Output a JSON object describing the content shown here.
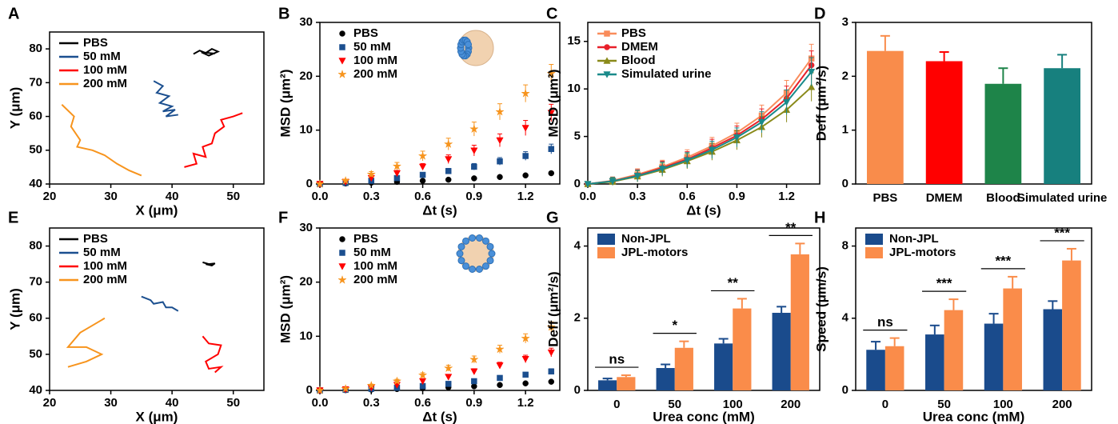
{
  "chart_data": [
    {
      "type": "line",
      "label": "A",
      "xlabel": "X (μm)",
      "ylabel": "Y (μm)",
      "xlim": [
        20,
        55
      ],
      "xticks": [
        20,
        30,
        40,
        50
      ],
      "ylim": [
        40,
        85
      ],
      "yticks": [
        40,
        50,
        60,
        70,
        80
      ],
      "legend": "upper left",
      "series": [
        {
          "name": "PBS",
          "color": "#000000",
          "x": [
            43.5,
            44.5,
            45.5,
            46.5,
            47.5,
            46,
            44.8,
            47
          ],
          "values": [
            78.5,
            79.5,
            78.8,
            80,
            79.2,
            78,
            79,
            78.6
          ]
        },
        {
          "name": "50 mM",
          "color": "#1b4f8f",
          "x": [
            37,
            38.5,
            37.5,
            39.5,
            38,
            40,
            38.5,
            40.5,
            39,
            41
          ],
          "values": [
            70.5,
            69,
            67,
            66,
            64,
            63,
            61.5,
            62,
            60,
            60.5
          ]
        },
        {
          "name": "100 mM",
          "color": "#ff0000",
          "x": [
            42,
            44,
            43.5,
            45.5,
            45,
            46.5,
            47,
            48.5,
            48,
            50,
            51.5
          ],
          "values": [
            45,
            46,
            49,
            48,
            51,
            52,
            55,
            57,
            59,
            60,
            61
          ]
        },
        {
          "name": "200 mM",
          "color": "#f7941d",
          "x": [
            22,
            24,
            23.5,
            25,
            24.5,
            27,
            29,
            31,
            33,
            35
          ],
          "values": [
            63.5,
            60,
            57,
            53,
            51,
            50,
            48.5,
            46,
            44,
            42.5
          ]
        }
      ]
    },
    {
      "type": "scatter",
      "label": "B",
      "xlabel": "Δt (s)",
      "ylabel": "MSD (μm²)",
      "xlim": [
        0,
        1.4
      ],
      "xticks": [
        {
          "value": 0,
          "label": "0.0"
        },
        0.3,
        0.6,
        0.9,
        1.2
      ],
      "ylim": [
        0,
        30
      ],
      "yticks": [
        0,
        10,
        20,
        30
      ],
      "legend": "upper left",
      "x": [
        0,
        0.15,
        0.3,
        0.45,
        0.6,
        0.75,
        0.9,
        1.05,
        1.2,
        1.35
      ],
      "series": [
        {
          "name": "PBS",
          "color": "#000000",
          "marker": "circle",
          "values": [
            0,
            0.1,
            0.25,
            0.4,
            0.6,
            0.8,
            1.05,
            1.3,
            1.6,
            2.0
          ],
          "errors": [
            0,
            0.05,
            0.1,
            0.1,
            0.15,
            0.15,
            0.2,
            0.2,
            0.25,
            0.3
          ]
        },
        {
          "name": "50 mM",
          "color": "#1b4f8f",
          "marker": "square",
          "values": [
            0,
            0.2,
            0.6,
            1.1,
            1.7,
            2.4,
            3.2,
            4.2,
            5.2,
            6.5
          ],
          "errors": [
            0,
            0.1,
            0.2,
            0.3,
            0.4,
            0.5,
            0.6,
            0.7,
            0.8,
            0.9
          ]
        },
        {
          "name": "100 mM",
          "color": "#ff0000",
          "marker": "triangle-down",
          "values": [
            0,
            0.4,
            1.1,
            2.0,
            3.2,
            4.6,
            6.2,
            8.1,
            10.4,
            13.2
          ],
          "errors": [
            0,
            0.2,
            0.3,
            0.5,
            0.6,
            0.8,
            1,
            1.2,
            1.4,
            1.6
          ]
        },
        {
          "name": "200 mM",
          "color": "#f7941d",
          "marker": "star",
          "values": [
            0,
            0.6,
            1.8,
            3.3,
            5.2,
            7.4,
            10.2,
            13.4,
            16.8,
            20.5
          ],
          "errors": [
            0,
            0.3,
            0.5,
            0.7,
            0.9,
            1.1,
            1.3,
            1.5,
            1.6,
            1.7
          ]
        }
      ]
    },
    {
      "type": "line",
      "label": "C",
      "xlabel": "Δt (s)",
      "ylabel": "MSD (μm²)",
      "xlim": [
        0,
        1.4
      ],
      "xticks": [
        {
          "value": 0,
          "label": "0.0"
        },
        0.3,
        0.6,
        0.9,
        1.2
      ],
      "ylim": [
        0,
        17
      ],
      "yticks": [
        0,
        5,
        10,
        15
      ],
      "legend": "upper left",
      "x": [
        0,
        0.15,
        0.3,
        0.45,
        0.6,
        0.75,
        0.9,
        1.05,
        1.2,
        1.35
      ],
      "series": [
        {
          "name": "PBS",
          "color": "#f98c5b",
          "marker": "square",
          "values": [
            0,
            0.35,
            1.0,
            1.8,
            2.8,
            4.0,
            5.4,
            7.2,
            9.6,
            13.2
          ],
          "errors": [
            0,
            0.4,
            0.6,
            0.7,
            0.8,
            0.9,
            1,
            1.1,
            1.3,
            1.5
          ]
        },
        {
          "name": "DMEM",
          "color": "#e8202a",
          "marker": "circle",
          "values": [
            0,
            0.3,
            0.9,
            1.7,
            2.6,
            3.8,
            5.1,
            6.8,
            9.0,
            12.5
          ],
          "errors": [
            0,
            0.4,
            0.6,
            0.7,
            0.8,
            0.9,
            1,
            1.1,
            1.3,
            1.5
          ]
        },
        {
          "name": "Blood",
          "color": "#8a8a1a",
          "marker": "triangle-up",
          "values": [
            0,
            0.25,
            0.8,
            1.5,
            2.4,
            3.4,
            4.6,
            6.0,
            7.8,
            10.2
          ],
          "errors": [
            0,
            0.4,
            0.6,
            0.7,
            0.8,
            0.9,
            1,
            1.1,
            1.3,
            1.5
          ]
        },
        {
          "name": "Simulated urine",
          "color": "#1a8a8a",
          "marker": "triangle-down",
          "values": [
            0,
            0.3,
            0.85,
            1.6,
            2.5,
            3.6,
            4.9,
            6.5,
            8.6,
            11.8
          ],
          "errors": [
            0,
            0.4,
            0.6,
            0.7,
            0.8,
            0.9,
            1,
            1.1,
            1.3,
            1.5
          ]
        }
      ]
    },
    {
      "type": "bar",
      "label": "D",
      "ylabel": "Deff (μm²/s)",
      "ylim": [
        0,
        3
      ],
      "yticks": [
        0,
        1,
        2,
        3
      ],
      "categories": [
        "PBS",
        "DMEM",
        "Blood",
        "Simulated urine"
      ],
      "series": [
        {
          "colors": [
            "#f98c4b",
            "#ff0000",
            "#1e8449",
            "#17807e"
          ],
          "values": [
            2.47,
            2.28,
            1.86,
            2.15
          ],
          "errors": [
            0.28,
            0.17,
            0.29,
            0.25
          ]
        }
      ]
    },
    {
      "type": "line",
      "label": "E",
      "xlabel": "X (μm)",
      "ylabel": "Y (μm)",
      "xlim": [
        20,
        55
      ],
      "xticks": [
        20,
        30,
        40,
        50
      ],
      "ylim": [
        40,
        85
      ],
      "yticks": [
        40,
        50,
        60,
        70,
        80
      ],
      "legend": "upper left",
      "series": [
        {
          "name": "PBS",
          "color": "#000000",
          "x": [
            45,
            46,
            47,
            46.5,
            45.5
          ],
          "values": [
            75.5,
            75,
            75.2,
            74.6,
            75
          ]
        },
        {
          "name": "50 mM",
          "color": "#1b4f8f",
          "x": [
            35,
            36.5,
            37,
            38.5,
            39,
            40,
            41
          ],
          "values": [
            66,
            65,
            64,
            64.5,
            63,
            63,
            62
          ]
        },
        {
          "name": "100 mM",
          "color": "#ff0000",
          "x": [
            45,
            46,
            48,
            47.5,
            45.5,
            46,
            48,
            47
          ],
          "values": [
            55,
            53,
            52.5,
            50,
            48,
            46,
            46.5,
            45
          ]
        },
        {
          "name": "200 mM",
          "color": "#f7941d",
          "x": [
            29,
            27,
            25,
            23,
            26,
            28.5,
            26,
            24,
            23
          ],
          "values": [
            60,
            58,
            56,
            52,
            52,
            50,
            48,
            47,
            46.5
          ]
        }
      ]
    },
    {
      "type": "scatter",
      "label": "F",
      "xlabel": "Δt (s)",
      "ylabel": "MSD (μm²)",
      "xlim": [
        0,
        1.4
      ],
      "xticks": [
        {
          "value": 0,
          "label": "0.0"
        },
        0.3,
        0.6,
        0.9,
        1.2
      ],
      "ylim": [
        0,
        30
      ],
      "yticks": [
        0,
        10,
        20,
        30
      ],
      "legend": "upper left",
      "x": [
        0,
        0.15,
        0.3,
        0.45,
        0.6,
        0.75,
        0.9,
        1.05,
        1.2,
        1.35
      ],
      "series": [
        {
          "name": "PBS",
          "color": "#000000",
          "marker": "circle",
          "values": [
            0,
            0.05,
            0.15,
            0.25,
            0.4,
            0.55,
            0.75,
            1.0,
            1.3,
            1.6
          ],
          "errors": [
            0,
            0.05,
            0.05,
            0.1,
            0.1,
            0.1,
            0.15,
            0.15,
            0.2,
            0.2
          ]
        },
        {
          "name": "50 mM",
          "color": "#1b4f8f",
          "marker": "square",
          "values": [
            0,
            0.1,
            0.3,
            0.5,
            0.8,
            1.2,
            1.7,
            2.3,
            2.9,
            3.5
          ],
          "errors": [
            0,
            0.05,
            0.1,
            0.15,
            0.2,
            0.25,
            0.3,
            0.35,
            0.4,
            0.5
          ]
        },
        {
          "name": "100 mM",
          "color": "#ff0000",
          "marker": "triangle-down",
          "values": [
            0,
            0.2,
            0.5,
            1.0,
            1.7,
            2.5,
            3.5,
            4.6,
            5.8,
            7.0
          ],
          "errors": [
            0,
            0.1,
            0.15,
            0.2,
            0.3,
            0.4,
            0.5,
            0.6,
            0.7,
            0.8
          ]
        },
        {
          "name": "200 mM",
          "color": "#f7941d",
          "marker": "star",
          "values": [
            0,
            0.3,
            0.9,
            1.7,
            2.8,
            4.1,
            5.7,
            7.6,
            9.6,
            11.7
          ],
          "errors": [
            0,
            0.15,
            0.25,
            0.35,
            0.45,
            0.55,
            0.65,
            0.75,
            0.85,
            0.95
          ]
        }
      ]
    },
    {
      "type": "bar",
      "label": "G",
      "xlabel": "Urea conc (mM)",
      "ylabel": "Deff (μm²/s)",
      "ylim": [
        0,
        4.5
      ],
      "yticks": [
        0,
        2,
        4
      ],
      "legend": "upper left",
      "categories": [
        "0",
        "50",
        "100",
        "200"
      ],
      "annotations": [
        "ns",
        "*",
        "**",
        "**"
      ],
      "series": [
        {
          "name": "Non-JPL",
          "color": "#1a4b8c",
          "values": [
            0.28,
            0.62,
            1.3,
            2.15
          ],
          "errors": [
            0.05,
            0.1,
            0.13,
            0.17
          ]
        },
        {
          "name": "JPL-motors",
          "color": "#fa8c4a",
          "values": [
            0.37,
            1.18,
            2.27,
            3.77
          ],
          "errors": [
            0.05,
            0.18,
            0.27,
            0.3
          ]
        }
      ]
    },
    {
      "type": "bar",
      "label": "H",
      "xlabel": "Urea conc (mM)",
      "ylabel": "Speed (μm/s)",
      "ylim": [
        0,
        9
      ],
      "yticks": [
        0,
        4,
        8
      ],
      "legend": "upper left",
      "categories": [
        "0",
        "50",
        "100",
        "200"
      ],
      "annotations": [
        "ns",
        "***",
        "***",
        "***"
      ],
      "series": [
        {
          "name": "Non-JPL",
          "color": "#1a4b8c",
          "values": [
            2.25,
            3.1,
            3.7,
            4.5
          ],
          "errors": [
            0.45,
            0.5,
            0.55,
            0.45
          ]
        },
        {
          "name": "JPL-motors",
          "color": "#fa8c4a",
          "values": [
            2.45,
            4.45,
            5.65,
            7.2
          ],
          "errors": [
            0.45,
            0.6,
            0.65,
            0.65
          ]
        }
      ]
    }
  ]
}
